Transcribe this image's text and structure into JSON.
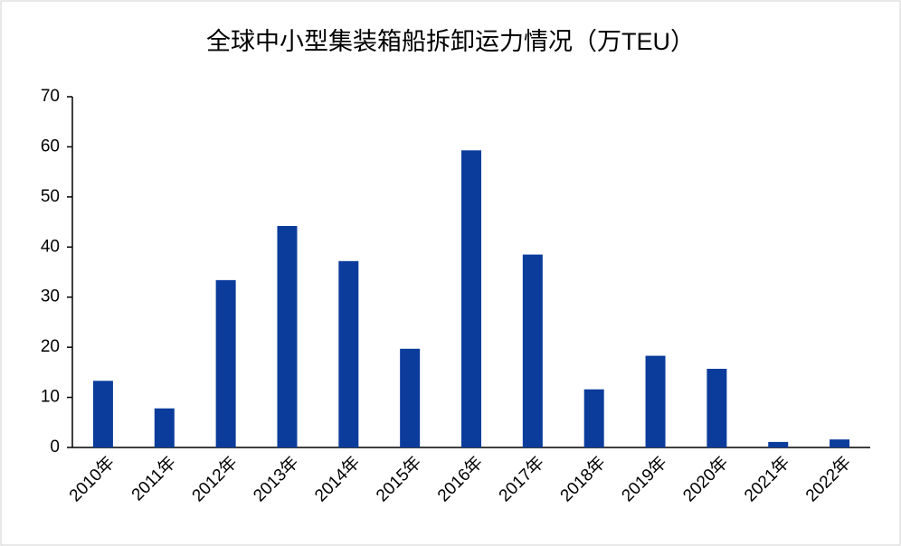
{
  "chart_data": {
    "type": "bar",
    "title": "全球中小型集装箱船拆卸运力情况（万TEU）",
    "categories": [
      "2010年",
      "2011年",
      "2012年",
      "2013年",
      "2014年",
      "2015年",
      "2016年",
      "2017年",
      "2018年",
      "2019年",
      "2020年",
      "2021年",
      "2022年"
    ],
    "values": [
      13.3,
      7.8,
      33.4,
      44.2,
      37.2,
      19.7,
      59.3,
      38.5,
      11.6,
      18.3,
      15.7,
      1.1,
      1.6
    ],
    "color": "#0b3c9c",
    "ylim": [
      0,
      70
    ],
    "yticks": [
      0,
      10,
      20,
      30,
      40,
      50,
      60,
      70
    ],
    "grid": false
  }
}
